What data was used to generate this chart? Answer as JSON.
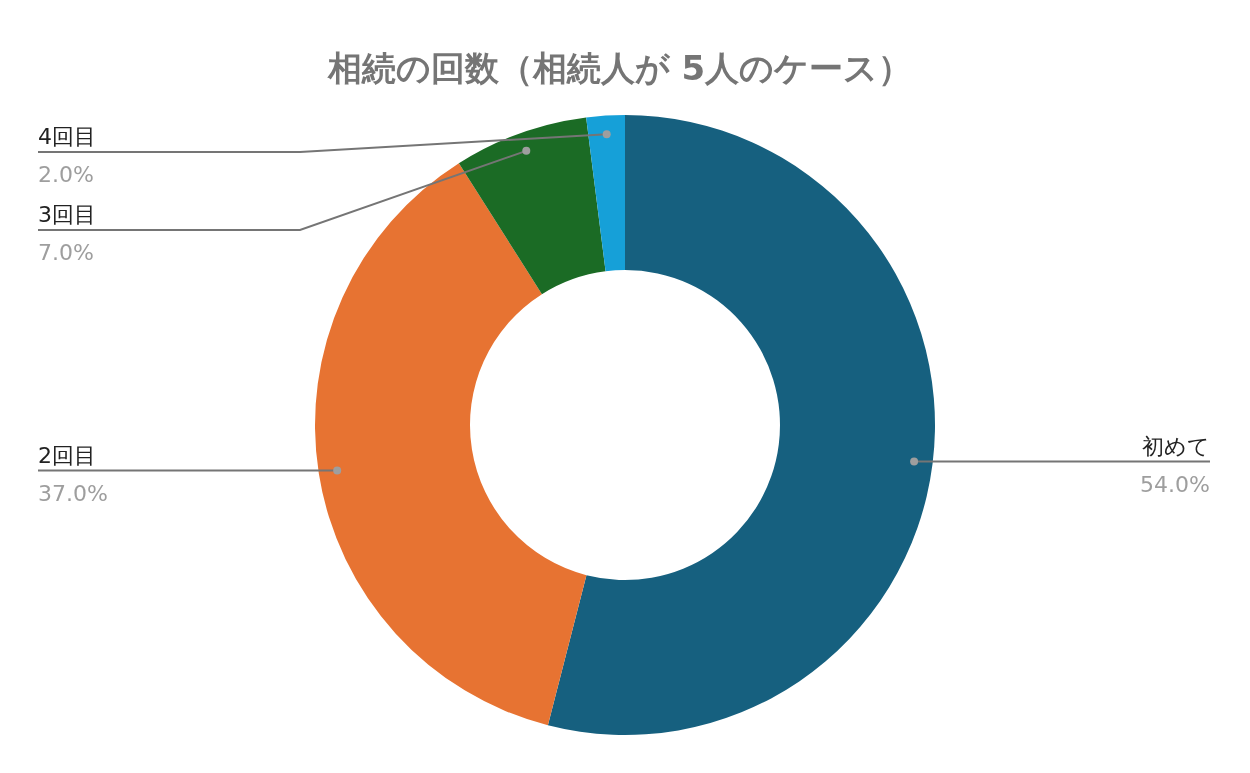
{
  "chart_data": {
    "type": "donut",
    "title": "相続の回数（相続人が 5人のケース）",
    "categories": [
      "初めて",
      "2回目",
      "3回目",
      "4回目"
    ],
    "values": [
      54,
      37,
      7,
      2
    ],
    "value_labels": [
      "54.0%",
      "37.0%",
      "7.0%",
      "2.0%"
    ],
    "colors": [
      "#16607f",
      "#e77332",
      "#1b6b25",
      "#16a0d8"
    ]
  }
}
